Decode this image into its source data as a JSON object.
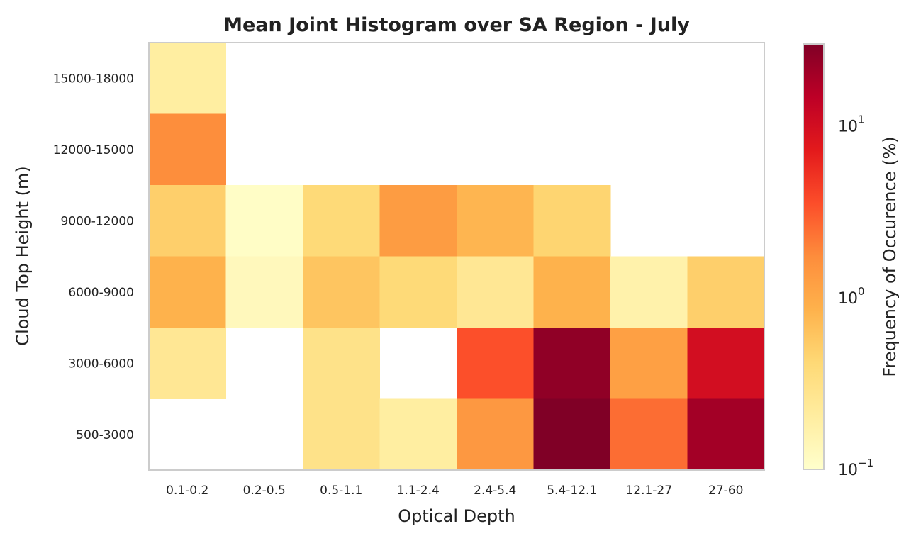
{
  "chart_data": {
    "type": "heatmap",
    "title": "Mean Joint Histogram over SA Region - July",
    "xlabel": "Optical Depth",
    "ylabel": "Cloud Top Height (m)",
    "x_categories": [
      "0.1-0.2",
      "0.2-0.5",
      "0.5-1.1",
      "1.1-2.4",
      "2.4-5.4",
      "5.4-12.1",
      "12.1-27",
      "27-60"
    ],
    "y_categories": [
      "15000-18000",
      "12000-15000",
      "9000-12000",
      "6000-9000",
      "3000-6000",
      "500-3000"
    ],
    "values": [
      [
        0.2,
        null,
        null,
        null,
        null,
        null,
        null,
        null
      ],
      [
        1.7,
        null,
        null,
        null,
        null,
        null,
        null,
        null
      ],
      [
        0.5,
        0.11,
        0.4,
        1.3,
        0.8,
        0.45,
        null,
        null
      ],
      [
        0.85,
        0.13,
        0.6,
        0.4,
        0.25,
        0.85,
        0.17,
        0.5
      ],
      [
        0.25,
        null,
        0.3,
        null,
        3.5,
        25,
        1.2,
        10
      ],
      [
        null,
        null,
        0.3,
        0.2,
        1.4,
        30,
        2.5,
        20
      ]
    ],
    "colorbar": {
      "label": "Frequency of Occurence (%)",
      "scale": "log",
      "range": [
        0.1,
        30
      ],
      "colormap": "YlOrRd",
      "ticks": [
        {
          "value": 0.1,
          "base": "10",
          "exponent": "−1"
        },
        {
          "value": 1,
          "base": "10",
          "exponent": "0"
        },
        {
          "value": 10,
          "base": "10",
          "exponent": "1"
        }
      ]
    },
    "grid": false
  },
  "colors": {
    "frame": "#cccccc",
    "text": "#222222"
  }
}
